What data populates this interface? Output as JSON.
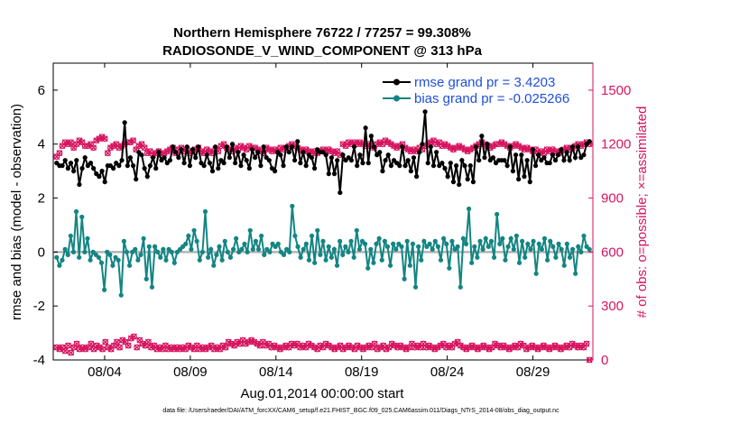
{
  "chart_data": {
    "type": "line",
    "title": "Northern Hemisphere 76722 / 77257 = 99.308%",
    "subtitle": "RADIOSONDE_V_WIND_COMPONENT @ 313 hPa",
    "xlabel": "Aug.01,2014 00:00:00 start",
    "ylabel_left": "rmse and bias (model - observation)",
    "ylabel_right": "# of obs: o=possible; ×=assimilated",
    "footer": "data file: /Users/raeder/DAI/ATM_forcXX/CAM6_setup/f.e21.FHIST_BGC.f09_025.CAM6assim.011/Diags_NTrS_2014-08/obs_diag_output.nc",
    "xlim": [
      1,
      32.5
    ],
    "ylim_left": [
      -4,
      7
    ],
    "ylim_right": [
      0,
      1650
    ],
    "x_ticks": [
      4,
      9,
      14,
      19,
      24,
      29
    ],
    "x_tick_labels": [
      "08/04",
      "08/09",
      "08/14",
      "08/19",
      "08/24",
      "08/29"
    ],
    "y_left_ticks": [
      -4,
      -2,
      0,
      2,
      4,
      6
    ],
    "y_left_tick_labels": [
      "-4",
      "-2",
      "0",
      "2",
      "4",
      "6"
    ],
    "y_right_ticks": [
      0,
      300,
      600,
      900,
      1200,
      1500
    ],
    "y_right_tick_labels": [
      "0",
      "300",
      "600",
      "900",
      "1200",
      "1500"
    ],
    "colors": {
      "rmse": "#000000",
      "bias": "#138583",
      "obs": "#d6145f",
      "legend_text": "#1f4fd6",
      "zero_line": "#b3b3b3"
    },
    "legend": [
      {
        "name": "rmse",
        "label": "rmse grand pr = 3.4203"
      },
      {
        "name": "bias",
        "label": "bias grand pr = -0.025266"
      }
    ],
    "series": [
      {
        "name": "rmse",
        "axis": "left",
        "values": [
          3.3,
          3.2,
          3.2,
          3.4,
          3.1,
          3.3,
          3.0,
          3.4,
          2.5,
          3.1,
          3.5,
          3.2,
          3.3,
          3.1,
          2.9,
          2.8,
          3.0,
          2.6,
          3.2,
          3.2,
          3.1,
          3.3,
          3.2,
          3.4,
          4.8,
          3.2,
          3.5,
          3.2,
          2.7,
          3.7,
          3.6,
          3.1,
          2.8,
          3.2,
          3.5,
          3.1,
          3.7,
          3.4,
          3.5,
          3.3,
          3.4,
          3.9,
          3.7,
          3.5,
          3.8,
          3.3,
          3.9,
          3.2,
          3.8,
          3.5,
          3.9,
          3.3,
          3.2,
          3.6,
          3.3,
          3.0,
          3.9,
          3.1,
          3.4,
          3.3,
          3.9,
          3.5,
          4.0,
          3.3,
          3.7,
          3.2,
          3.6,
          3.4,
          3.1,
          3.8,
          3.5,
          3.7,
          3.2,
          3.9,
          3.5,
          3.4,
          3.1,
          3.0,
          3.7,
          3.6,
          3.2,
          3.9,
          3.7,
          3.9,
          3.4,
          4.1,
          3.3,
          3.7,
          3.2,
          3.6,
          3.5,
          3.1,
          3.8,
          3.7,
          3.7,
          3.6,
          2.9,
          3.5,
          2.9,
          3.4,
          2.2,
          3.6,
          3.4,
          3.5,
          3.4,
          3.9,
          3.2,
          3.6,
          3.3,
          4.6,
          3.3,
          4.3,
          3.9,
          3.6,
          3.7,
          3.0,
          3.4,
          3.6,
          3.2,
          3.4,
          3.3,
          3.2,
          3.9,
          3.2,
          3.4,
          3.0,
          3.5,
          2.8,
          3.7,
          4.0,
          5.2,
          3.3,
          3.9,
          3.2,
          3.7,
          3.2,
          3.3,
          3.1,
          2.8,
          3.3,
          2.6,
          3.2,
          2.5,
          3.4,
          3.2,
          2.7,
          3.2,
          2.6,
          3.9,
          3.4,
          4.3,
          3.5,
          4.0,
          3.4,
          3.5,
          3.3,
          3.4,
          3.4,
          3.4,
          3.2,
          3.9,
          3.0,
          3.6,
          2.7,
          3.6,
          2.8,
          3.4,
          2.6,
          3.8,
          3.2,
          3.6,
          3.4,
          3.5,
          3.3,
          3.3,
          3.6,
          3.4,
          3.6,
          3.8,
          3.4,
          3.7,
          3.4,
          3.9,
          3.5,
          3.9,
          3.5,
          3.6,
          4.0,
          4.1
        ]
      },
      {
        "name": "bias",
        "axis": "left",
        "values": [
          -0.2,
          -0.5,
          -0.3,
          0.1,
          -0.1,
          0.6,
          0.0,
          1.5,
          -0.2,
          1.3,
          0.0,
          0.5,
          -0.3,
          0.0,
          -0.1,
          -0.2,
          -0.4,
          -1.4,
          0.0,
          -0.1,
          -0.5,
          -0.2,
          -0.3,
          -1.6,
          0.4,
          0.0,
          -0.5,
          0.0,
          0.1,
          -0.3,
          -0.1,
          0.5,
          -1.0,
          0.2,
          -1.3,
          0.2,
          0.0,
          -0.2,
          0.1,
          -0.3,
          0.1,
          0.0,
          -0.4,
          0.0,
          0.1,
          0.2,
          0.3,
          0.6,
          0.1,
          0.8,
          0.4,
          -0.3,
          0.0,
          1.5,
          -0.2,
          0.1,
          -0.5,
          -0.1,
          0.2,
          -0.3,
          0.4,
          0.0,
          -0.2,
          0.1,
          0.5,
          0.0,
          0.1,
          0.3,
          0.0,
          0.8,
          0.1,
          0.4,
          0.1,
          0.6,
          -0.1,
          0.1,
          0.0,
          0.3,
          0.2,
          0.3,
          0.0,
          -0.1,
          0.1,
          0.0,
          1.7,
          0.6,
          0.2,
          -0.2,
          0.1,
          0.3,
          -0.3,
          0.6,
          -0.4,
          0.8,
          -0.1,
          0.4,
          -0.3,
          0.2,
          -0.2,
          0.1,
          -0.5,
          0.4,
          -0.1,
          0.2,
          0.0,
          0.4,
          -0.2,
          0.8,
          0.1,
          0.4,
          0.3,
          -0.6,
          0.1,
          -0.4,
          0.3,
          0.5,
          -0.3,
          0.4,
          0.2,
          -0.5,
          0.3,
          0.1,
          0.3,
          0.2,
          -1.0,
          0.4,
          -0.5,
          0.3,
          -1.3,
          0.2,
          -0.3,
          0.4,
          0.2,
          0.3,
          0.1,
          0.4,
          0.2,
          -0.3,
          0.5,
          0.3,
          -0.6,
          0.4,
          0.1,
          0.2,
          -1.3,
          0.5,
          0.3,
          1.6,
          -0.4,
          0.2,
          -0.2,
          0.4,
          0.1,
          0.5,
          0.2,
          0.4,
          -0.2,
          1.4,
          0.3,
          0.5,
          -0.3,
          0.2,
          0.5,
          0.1,
          0.6,
          -0.4,
          0.4,
          -0.2,
          0.3,
          0.1,
          0.4,
          -0.8,
          0.3,
          0.1,
          0.5,
          -0.3,
          0.4,
          0.2,
          -0.2,
          0.3,
          0.1,
          -0.5,
          0.3,
          -0.2,
          0.1,
          -0.8,
          0.2,
          0.0,
          0.6,
          0.2,
          0.1
        ]
      },
      {
        "name": "obs_possible",
        "axis": "right",
        "marker": "o",
        "values": [
          1130,
          1150,
          1190,
          1210,
          1200,
          1210,
          1180,
          1200,
          1220,
          1210,
          1190,
          1190,
          1200,
          1180,
          1220,
          1230,
          1240,
          1230,
          1150,
          1180,
          1190,
          1200,
          1180,
          1190,
          1200,
          1210,
          1210,
          1220,
          1170,
          1190,
          1200,
          1180,
          1150,
          1160,
          1140,
          1150,
          1160,
          1140,
          1150,
          1160,
          1170,
          1180,
          1150,
          1170,
          1180,
          1160,
          1170,
          1150,
          1160,
          1170,
          1180,
          1160,
          1150,
          1170,
          1160,
          1150,
          1170,
          1160,
          1190,
          1200,
          1180,
          1170,
          1160,
          1180,
          1170,
          1190,
          1180,
          1170,
          1190,
          1180,
          1180,
          1170,
          1160,
          1150,
          1180,
          1170,
          1160,
          1170,
          1160,
          1180,
          1170,
          1180,
          1190,
          1200,
          1190,
          1180,
          1170,
          1160,
          1170,
          1160,
          1150,
          1160,
          1150,
          1160,
          1170,
          1160,
          1170,
          1160,
          1150,
          1160,
          1140,
          1200,
          1190,
          1210,
          1200,
          1210,
          1200,
          1210,
          1200,
          1190,
          1200,
          1190,
          1180,
          1200,
          1210,
          1200,
          1220,
          1210,
          1200,
          1190,
          1180,
          1190,
          1200,
          1180,
          1170,
          1160,
          1170,
          1160,
          1180,
          1170,
          1190,
          1200,
          1210,
          1220,
          1200,
          1210,
          1190,
          1200,
          1190,
          1180,
          1170,
          1180,
          1190,
          1180,
          1170,
          1160,
          1170,
          1180,
          1190,
          1200,
          1210,
          1200,
          1190,
          1180,
          1190,
          1200,
          1200,
          1210,
          1200,
          1190,
          1180,
          1190,
          1200,
          1190,
          1180,
          1170,
          1180,
          1170,
          1160,
          1170,
          1150,
          1160,
          1150,
          1170,
          1160,
          1170,
          1160,
          1150,
          1160,
          1170,
          1180,
          1170,
          1180,
          1190,
          1200,
          1190,
          1200,
          1210,
          1200
        ]
      },
      {
        "name": "obs_assimilated",
        "axis": "right",
        "marker": "x",
        "values": [
          1130,
          1150,
          1190,
          1210,
          1200,
          1210,
          1180,
          1200,
          1220,
          1210,
          1190,
          1190,
          1200,
          1180,
          1220,
          1230,
          1240,
          1230,
          1150,
          1180,
          1190,
          1200,
          1180,
          1190,
          1200,
          1210,
          1210,
          1220,
          1170,
          1190,
          1200,
          1180,
          1150,
          1160,
          1140,
          1150,
          1160,
          1140,
          1150,
          1160,
          1170,
          1180,
          1150,
          1170,
          1180,
          1160,
          1170,
          1150,
          1160,
          1170,
          1180,
          1160,
          1150,
          1170,
          1160,
          1150,
          1170,
          1160,
          1190,
          1200,
          1180,
          1170,
          1160,
          1180,
          1170,
          1190,
          1180,
          1170,
          1190,
          1180,
          1180,
          1170,
          1160,
          1150,
          1180,
          1170,
          1160,
          1170,
          1160,
          1180,
          1170,
          1180,
          1190,
          1200,
          1190,
          1180,
          1170,
          1160,
          1170,
          1160,
          1150,
          1160,
          1150,
          1160,
          1170,
          1160,
          1170,
          1160,
          1150,
          1160,
          1140,
          1200,
          1190,
          1210,
          1200,
          1210,
          1200,
          1210,
          1200,
          1190,
          1200,
          1190,
          1180,
          1200,
          1210,
          1200,
          1220,
          1210,
          1200,
          1190,
          1180,
          1190,
          1200,
          1180,
          1170,
          1160,
          1170,
          1160,
          1180,
          1170,
          1190,
          1200,
          1210,
          1220,
          1200,
          1210,
          1190,
          1200,
          1190,
          1180,
          1170,
          1180,
          1190,
          1180,
          1170,
          1160,
          1170,
          1180,
          1190,
          1200,
          1210,
          1200,
          1190,
          1180,
          1190,
          1200,
          1200,
          1210,
          1200,
          1190,
          1180,
          1190,
          1200,
          1190,
          1180,
          1170,
          1180,
          1170,
          1160,
          1170,
          1150,
          1160,
          1150,
          1170,
          1160,
          1170,
          1160,
          1150,
          1160,
          1170,
          1180,
          1170,
          1180,
          1190,
          1200,
          1190,
          1200,
          1210,
          1200
        ]
      },
      {
        "name": "obs_possible_low",
        "axis": "right",
        "marker": "o",
        "values": [
          70,
          60,
          70,
          50,
          80,
          40,
          70,
          90,
          60,
          70,
          60,
          70,
          90,
          60,
          80,
          70,
          60,
          100,
          70,
          60,
          80,
          100,
          70,
          110,
          100,
          80,
          120,
          130,
          70,
          110,
          90,
          80,
          100,
          70,
          80,
          60,
          70,
          60,
          80,
          60,
          70,
          60,
          70,
          60,
          70,
          60,
          80,
          70,
          60,
          80,
          60,
          70,
          60,
          70,
          80,
          60,
          70,
          60,
          80,
          70,
          100,
          90,
          80,
          100,
          90,
          110,
          90,
          100,
          110,
          100,
          90,
          80,
          100,
          80,
          90,
          70,
          80,
          70,
          60,
          70,
          80,
          70,
          90,
          80,
          90,
          70,
          80,
          70,
          90,
          80,
          70,
          60,
          80,
          70,
          90,
          80,
          70,
          60,
          70,
          80,
          60,
          70,
          80,
          70,
          60,
          80,
          70,
          60,
          70,
          80,
          70,
          90,
          60,
          70,
          80,
          60,
          70,
          90,
          80,
          70,
          80,
          70,
          60,
          70,
          90,
          70,
          80,
          70,
          90,
          70,
          80,
          70,
          60,
          70,
          80,
          90,
          70,
          80,
          70,
          90,
          100,
          80,
          70,
          60,
          70,
          80,
          70,
          60,
          70,
          80,
          70,
          60,
          70,
          90,
          80,
          70,
          80,
          70,
          60,
          70,
          80,
          70,
          90,
          80,
          60,
          70,
          80,
          70,
          60,
          70,
          80,
          70,
          60,
          70,
          80,
          70,
          60,
          70,
          80,
          70,
          90,
          80,
          70,
          80,
          70,
          90,
          0
        ]
      },
      {
        "name": "obs_assimilated_low",
        "axis": "right",
        "marker": "x",
        "values": [
          70,
          60,
          70,
          50,
          80,
          40,
          70,
          90,
          60,
          70,
          60,
          70,
          90,
          60,
          80,
          70,
          60,
          100,
          70,
          60,
          80,
          100,
          70,
          110,
          100,
          80,
          120,
          130,
          70,
          110,
          90,
          80,
          100,
          70,
          80,
          60,
          70,
          60,
          80,
          60,
          70,
          60,
          70,
          60,
          70,
          60,
          80,
          70,
          60,
          80,
          60,
          70,
          60,
          70,
          80,
          60,
          70,
          60,
          80,
          70,
          100,
          90,
          80,
          100,
          90,
          110,
          90,
          100,
          110,
          100,
          90,
          80,
          100,
          80,
          90,
          70,
          80,
          70,
          60,
          70,
          80,
          70,
          90,
          80,
          90,
          70,
          80,
          70,
          90,
          80,
          70,
          60,
          80,
          70,
          90,
          80,
          70,
          60,
          70,
          80,
          60,
          70,
          80,
          70,
          60,
          80,
          70,
          60,
          70,
          80,
          70,
          90,
          60,
          70,
          80,
          60,
          70,
          90,
          80,
          70,
          80,
          70,
          60,
          70,
          90,
          70,
          80,
          70,
          90,
          70,
          80,
          70,
          60,
          70,
          80,
          90,
          70,
          80,
          70,
          90,
          100,
          80,
          70,
          60,
          70,
          80,
          70,
          60,
          70,
          80,
          70,
          60,
          70,
          90,
          80,
          70,
          80,
          70,
          60,
          70,
          80,
          70,
          90,
          80,
          60,
          70,
          80,
          70,
          60,
          70,
          80,
          70,
          60,
          70,
          80,
          70,
          60,
          70,
          80,
          70,
          90,
          80,
          70,
          80,
          70,
          90,
          0
        ]
      }
    ]
  }
}
